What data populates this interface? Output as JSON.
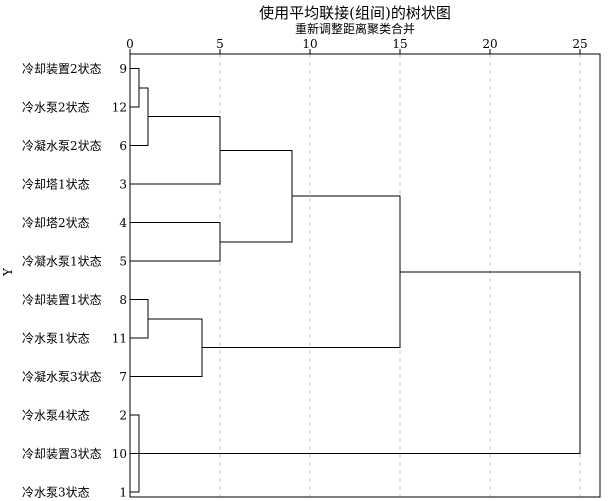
{
  "chart_data": {
    "type": "dendrogram",
    "title": "使用平均联接(组间)的树状图",
    "subtitle": "重新调整距离聚类合并",
    "ylabel": "Y",
    "xlim": [
      0,
      25
    ],
    "xticks": [
      0,
      5,
      10,
      15,
      20,
      25
    ],
    "grid": true,
    "leaves": [
      {
        "label": "冷却装置2状态",
        "id": "9"
      },
      {
        "label": "冷水泵2状态",
        "id": "12"
      },
      {
        "label": "冷凝水泵2状态",
        "id": "6"
      },
      {
        "label": "冷却塔1状态",
        "id": "3"
      },
      {
        "label": "冷却塔2状态",
        "id": "4"
      },
      {
        "label": "冷凝水泵1状态",
        "id": "5"
      },
      {
        "label": "冷却装置1状态",
        "id": "8"
      },
      {
        "label": "冷水泵1状态",
        "id": "11"
      },
      {
        "label": "冷凝水泵3状态",
        "id": "7"
      },
      {
        "label": "冷水泵4状态",
        "id": "2"
      },
      {
        "label": "冷却装置3状态",
        "id": "10"
      },
      {
        "label": "冷水泵3状态",
        "id": "1"
      }
    ],
    "merges": [
      {
        "a": "L0",
        "b": "L1",
        "height": 0.5
      },
      {
        "a": "L9",
        "b": "L11",
        "height": 0.5
      },
      {
        "a": "M0",
        "b": "L2",
        "height": 1
      },
      {
        "a": "L6",
        "b": "L7",
        "height": 1
      },
      {
        "a": "M1",
        "b": "L10",
        "height": 1
      },
      {
        "a": "M3",
        "b": "L8",
        "height": 4
      },
      {
        "a": "L4",
        "b": "L5",
        "height": 5
      },
      {
        "a": "M2",
        "b": "L3",
        "height": 5
      },
      {
        "a": "M7",
        "b": "M6",
        "height": 9
      },
      {
        "a": "M8",
        "b": "M5",
        "height": 15
      },
      {
        "a": "M9",
        "b": "M4",
        "height": 25
      }
    ]
  }
}
